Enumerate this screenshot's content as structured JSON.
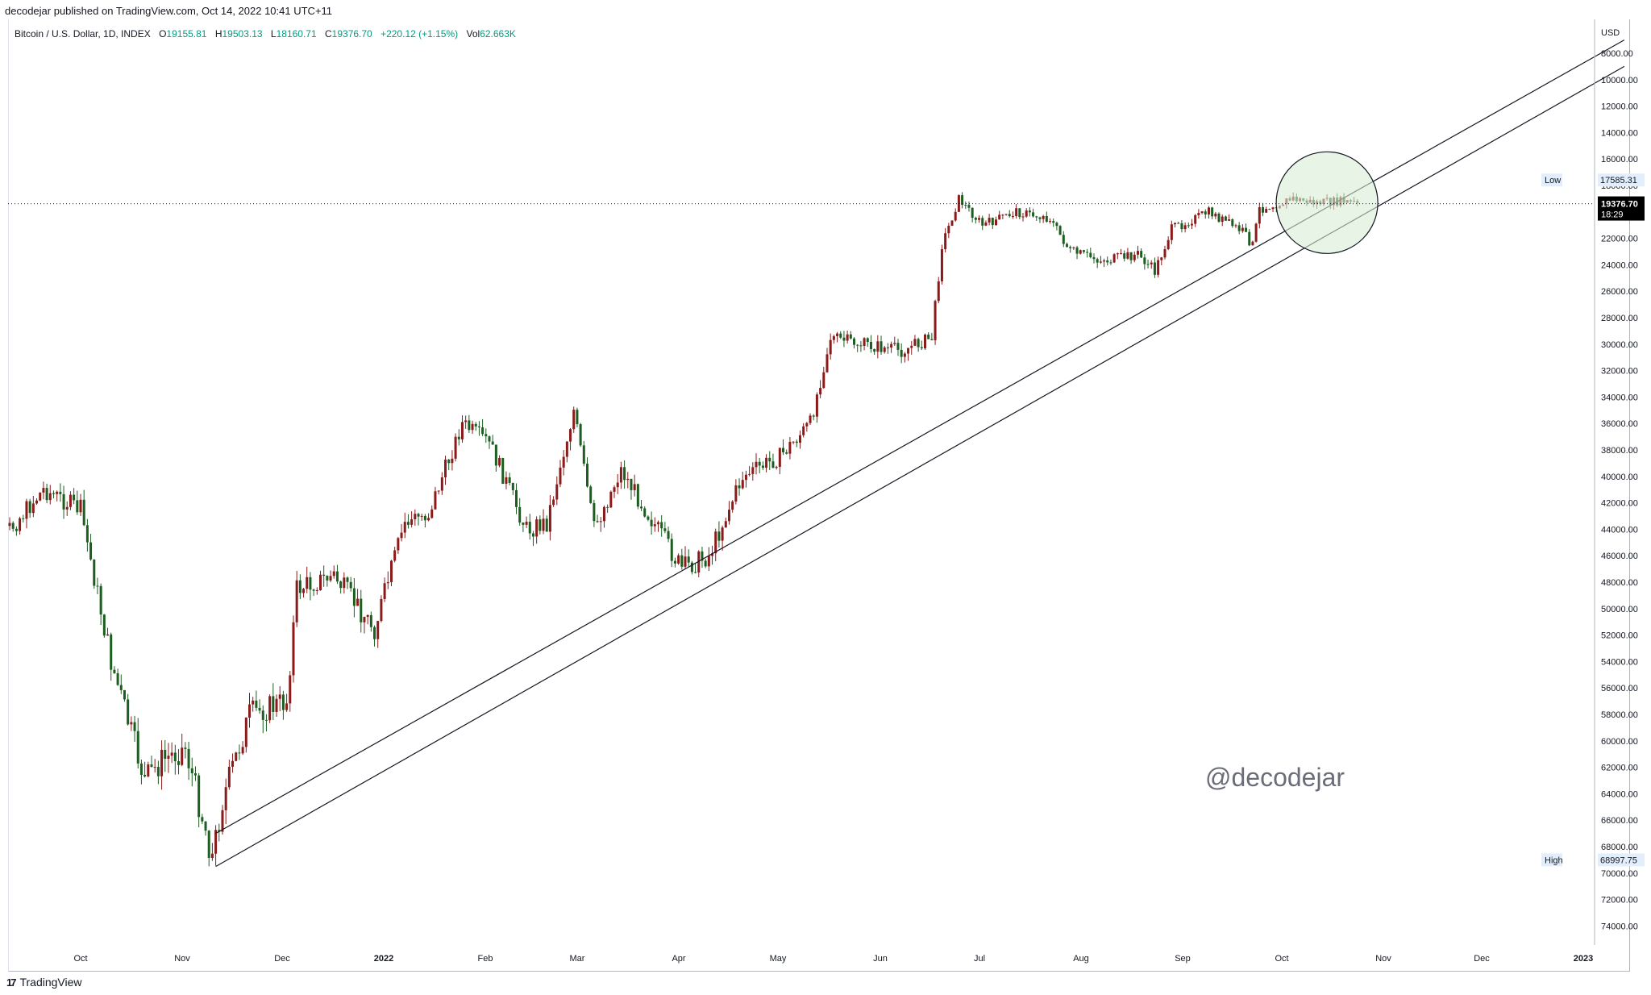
{
  "header": {
    "published_line": "decodejar published on TradingView.com, Oct 14, 2022 10:41 UTC+11"
  },
  "legend": {
    "symbol": "Bitcoin / U.S. Dollar, 1D, INDEX",
    "open_label": "O",
    "open": "19155.81",
    "high_label": "H",
    "high": "19503.13",
    "low_label": "L",
    "low": "18160.71",
    "close_label": "C",
    "close": "19376.70",
    "change": "+220.12 (+1.15%)",
    "vol_label": "Vol",
    "vol": "62.663K"
  },
  "price_axis": {
    "currency": "USD",
    "ticks": [
      "8000.00",
      "10000.00",
      "12000.00",
      "14000.00",
      "16000.00",
      "18000.00",
      "20000.00",
      "22000.00",
      "24000.00",
      "26000.00",
      "28000.00",
      "30000.00",
      "32000.00",
      "34000.00",
      "36000.00",
      "38000.00",
      "40000.00",
      "42000.00",
      "44000.00",
      "46000.00",
      "48000.00",
      "50000.00",
      "52000.00",
      "54000.00",
      "56000.00",
      "58000.00",
      "60000.00",
      "62000.00",
      "64000.00",
      "66000.00",
      "68000.00",
      "70000.00",
      "72000.00",
      "74000.00"
    ],
    "inverted": true,
    "low_tag": {
      "label": "Low",
      "value": "17585.31"
    },
    "high_tag": {
      "label": "High",
      "value": "68997.75"
    },
    "last_price": {
      "value": "19376.70",
      "countdown": "18:29"
    }
  },
  "time_axis": {
    "labels": [
      "Oct",
      "Nov",
      "Dec",
      "2022",
      "Feb",
      "Mar",
      "Apr",
      "May",
      "Jun",
      "Jul",
      "Aug",
      "Sep",
      "Oct",
      "Nov",
      "Dec",
      "2023"
    ]
  },
  "watermark": "@decodejar",
  "footer": {
    "brand": "TradingView",
    "logo": "17"
  },
  "colors": {
    "up": "#1b5e20",
    "down": "#8b1a1a",
    "line": "#131722",
    "circle_fill": "#d9ecd3",
    "circle_stroke": "#131722",
    "last_price_bg": "#000000"
  },
  "chart_data": {
    "type": "candlestick",
    "title": "Bitcoin / U.S. Dollar, 1D, INDEX",
    "x": [
      "2021-09",
      "2021-10",
      "2021-11",
      "2021-12",
      "2022-01",
      "2022-02",
      "2022-03",
      "2022-04",
      "2022-05",
      "2022-06",
      "2022-07",
      "2022-08",
      "2022-09",
      "2022-10"
    ],
    "y_scale": "inverted",
    "ylim": [
      7000,
      75000
    ],
    "series": [
      {
        "name": "Bitcoin / U.S. Dollar",
        "points": [
          [
            "2021-09-01",
            47000
          ],
          [
            "2021-09-10",
            44000
          ],
          [
            "2021-09-20",
            41000
          ],
          [
            "2021-10-01",
            42500
          ],
          [
            "2021-10-10",
            54000
          ],
          [
            "2021-10-20",
            63000
          ],
          [
            "2021-10-25",
            61500
          ],
          [
            "2021-11-01",
            60500
          ],
          [
            "2021-11-09",
            68800
          ],
          [
            "2021-11-12",
            64500
          ],
          [
            "2021-11-20",
            58000
          ],
          [
            "2021-12-01",
            57000
          ],
          [
            "2021-12-04",
            48500
          ],
          [
            "2021-12-15",
            47500
          ],
          [
            "2021-12-27",
            51500
          ],
          [
            "2022-01-05",
            43500
          ],
          [
            "2022-01-12",
            42800
          ],
          [
            "2022-01-22",
            36000
          ],
          [
            "2022-01-30",
            37500
          ],
          [
            "2022-02-10",
            44000
          ],
          [
            "2022-02-16",
            43500
          ],
          [
            "2022-02-24",
            35000
          ],
          [
            "2022-03-02",
            44000
          ],
          [
            "2022-03-10",
            39500
          ],
          [
            "2022-03-28",
            47000
          ],
          [
            "2022-04-05",
            46000
          ],
          [
            "2022-04-15",
            40000
          ],
          [
            "2022-04-26",
            38500
          ],
          [
            "2022-05-05",
            36000
          ],
          [
            "2022-05-11",
            29500
          ],
          [
            "2022-05-20",
            30000
          ],
          [
            "2022-06-01",
            30500
          ],
          [
            "2022-06-10",
            29500
          ],
          [
            "2022-06-13",
            22500
          ],
          [
            "2022-06-18",
            19000
          ],
          [
            "2022-06-25",
            21000
          ],
          [
            "2022-07-05",
            20000
          ],
          [
            "2022-07-15",
            20500
          ],
          [
            "2022-07-21",
            23000
          ],
          [
            "2022-07-31",
            23700
          ],
          [
            "2022-08-10",
            23200
          ],
          [
            "2022-08-15",
            24500
          ],
          [
            "2022-08-20",
            21300
          ],
          [
            "2022-08-31",
            20000
          ],
          [
            "2022-09-10",
            21500
          ],
          [
            "2022-09-13",
            22500
          ],
          [
            "2022-09-15",
            19800
          ],
          [
            "2022-09-25",
            19000
          ],
          [
            "2022-10-01",
            19300
          ],
          [
            "2022-10-10",
            19200
          ],
          [
            "2022-10-14",
            19376.7
          ]
        ]
      }
    ],
    "annotations": [
      {
        "type": "trendline",
        "label": "",
        "from": [
          "2021-11-10",
          67000
        ],
        "to": [
          "2023-01-01",
          7000
        ]
      },
      {
        "type": "trendline",
        "label": "",
        "from": [
          "2021-11-10",
          69500
        ],
        "to": [
          "2023-01-01",
          9000
        ]
      },
      {
        "type": "circle",
        "label": "",
        "center": [
          "2022-10-05",
          19300
        ]
      },
      {
        "type": "hline",
        "label": "last price",
        "value": 19376.7
      }
    ]
  }
}
